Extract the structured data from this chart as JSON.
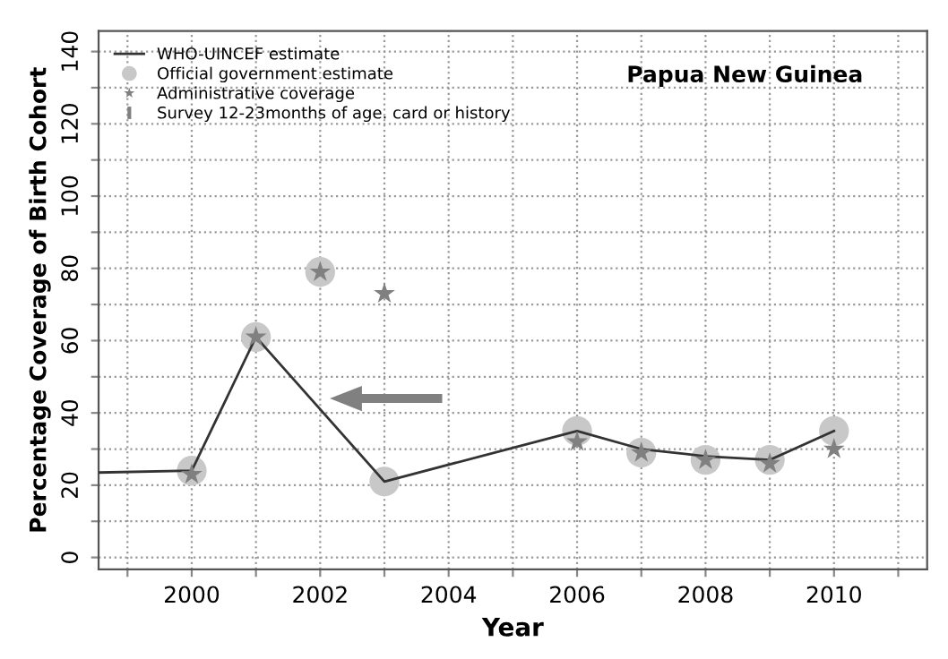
{
  "chart_data": {
    "type": "line",
    "title": "Papua New Guinea",
    "xlabel": "Year",
    "ylabel": "Percentage Coverage of Birth Cohort",
    "xlim": [
      1998.55,
      2011.45
    ],
    "ylim": [
      -3.3,
      145.7
    ],
    "xticks": [
      {
        "value": 1999,
        "label": null
      },
      2000,
      {
        "value": 2001,
        "label": null
      },
      2002,
      {
        "value": 2003,
        "label": null
      },
      2004,
      {
        "value": 2005,
        "label": null
      },
      2006,
      {
        "value": 2007,
        "label": null
      },
      2008,
      {
        "value": 2009,
        "label": null
      },
      2010,
      {
        "value": 2011,
        "label": null
      }
    ],
    "yticks": [
      0,
      {
        "value": 10,
        "label": null
      },
      20,
      {
        "value": 30,
        "label": null
      },
      40,
      {
        "value": 50,
        "label": null
      },
      60,
      {
        "value": 70,
        "label": null
      },
      80,
      {
        "value": 90,
        "label": null
      },
      100,
      {
        "value": 110,
        "label": null
      },
      120,
      {
        "value": 130,
        "label": null
      },
      140
    ],
    "grid": true,
    "legend": "top left",
    "series": [
      {
        "name": "WHO-UINCEF estimate",
        "color": "#333333",
        "marker": "none",
        "x": [
          1998.55,
          2000,
          2001,
          2003,
          2006,
          2007,
          2008,
          2009,
          2010
        ],
        "values": [
          23.5,
          24,
          61,
          21,
          35,
          30,
          28,
          27,
          35
        ]
      },
      {
        "name": "Official government estimate",
        "type": "scatter",
        "color": "#c8c8c8",
        "marker": "circle",
        "x": [
          2000,
          2001,
          2002,
          2003,
          2006,
          2007,
          2008,
          2009,
          2010
        ],
        "values": [
          24,
          61,
          79,
          21,
          35,
          29,
          27,
          27,
          35
        ]
      },
      {
        "name": "Administrative coverage",
        "type": "scatter",
        "color": "#808080",
        "marker": "star",
        "x": [
          2000,
          2001,
          2002,
          2003,
          2006,
          2007,
          2008,
          2009,
          2010
        ],
        "values": [
          23,
          61,
          79,
          73,
          32,
          29,
          27,
          26,
          30
        ]
      },
      {
        "name": "Survey 12-23months of age. card or history",
        "type": "scatter",
        "color": "#808080",
        "marker": "vline"
      }
    ]
  }
}
